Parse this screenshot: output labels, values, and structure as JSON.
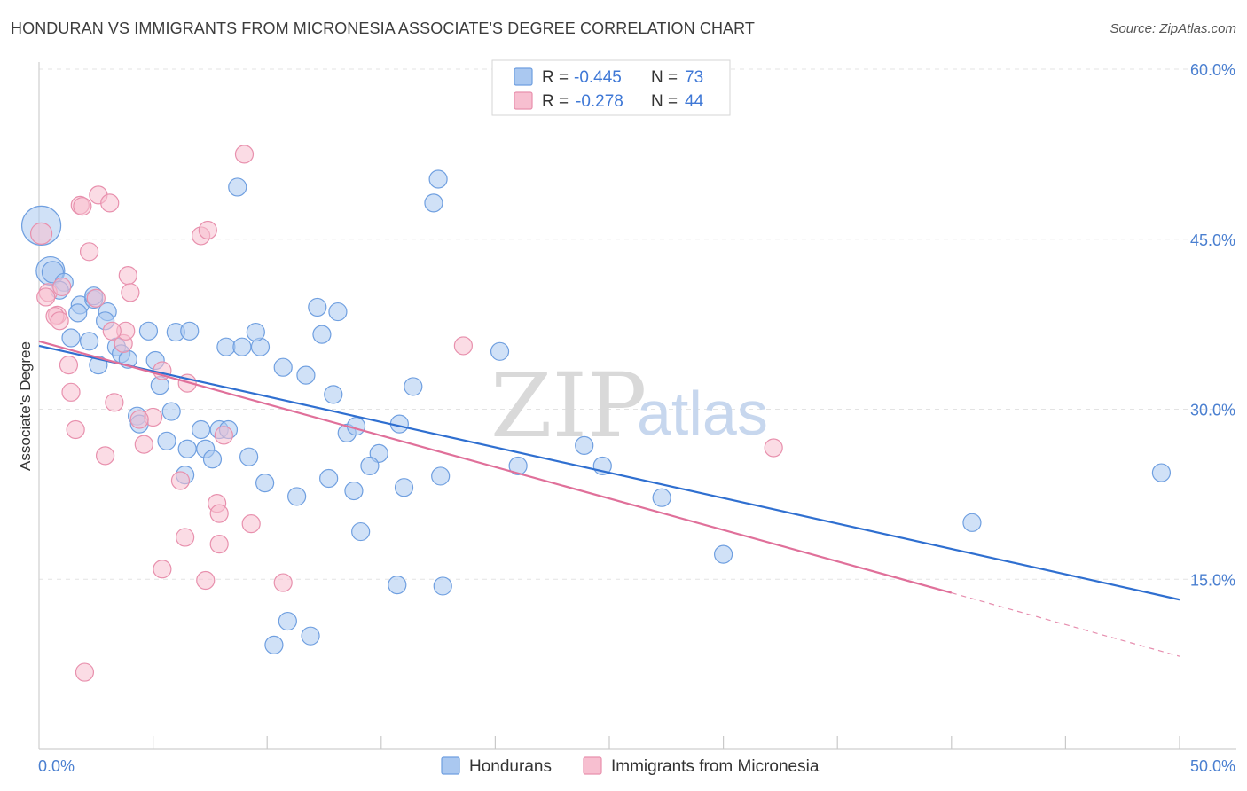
{
  "header": {
    "title": "HONDURAN VS IMMIGRANTS FROM MICRONESIA ASSOCIATE'S DEGREE CORRELATION CHART",
    "source": "Source: ZipAtlas.com"
  },
  "watermark": {
    "zip": "ZIP",
    "atlas": "atlas"
  },
  "legend": {
    "rows": [
      {
        "r_label": "R =",
        "r_value": "-0.445",
        "n_label": "N =",
        "n_value": "73",
        "color": "#aac8f0",
        "stroke": "#6f9fe0"
      },
      {
        "r_label": "R =",
        "r_value": "-0.278",
        "n_label": "N =",
        "n_value": "44",
        "color": "#f7bfd0",
        "stroke": "#e890ad"
      }
    ]
  },
  "bottom_legend": {
    "items": [
      {
        "label": "Hondurans",
        "color": "#aac8f0",
        "stroke": "#6f9fe0"
      },
      {
        "label": "Immigrants from Micronesia",
        "color": "#f7bfd0",
        "stroke": "#e890ad"
      }
    ]
  },
  "chart_data": {
    "type": "scatter",
    "title": "HONDURAN VS IMMIGRANTS FROM MICRONESIA ASSOCIATE'S DEGREE CORRELATION CHART",
    "xlabel": "",
    "ylabel": "Associate's Degree",
    "xlim": [
      0,
      50
    ],
    "ylim": [
      0,
      60
    ],
    "x_tick_labels": [
      {
        "value": 0,
        "label": "0.0%"
      },
      {
        "value": 50,
        "label": "50.0%"
      }
    ],
    "y_tick_labels": [
      {
        "value": 15,
        "label": "15.0%"
      },
      {
        "value": 30,
        "label": "30.0%"
      },
      {
        "value": 45,
        "label": "45.0%"
      },
      {
        "value": 60,
        "label": "60.0%"
      }
    ],
    "grid": true,
    "series": [
      {
        "name": "Hondurans",
        "color": "#aac8f0",
        "stroke": "#6f9fe0",
        "trend": {
          "x0": 0,
          "y0": 35.6,
          "x1": 50,
          "y1": 13.2,
          "color": "#2f6fd0"
        },
        "points": [
          [
            0.1,
            46.2,
            22
          ],
          [
            0.5,
            42.2,
            16
          ],
          [
            0.6,
            42.1,
            12
          ],
          [
            1.1,
            41.2,
            10
          ],
          [
            0.9,
            40.5,
            10
          ],
          [
            1.8,
            39.2,
            10
          ],
          [
            2.4,
            39.7,
            10
          ],
          [
            1.7,
            38.5,
            10
          ],
          [
            3.0,
            38.6,
            10
          ],
          [
            2.9,
            37.8,
            10
          ],
          [
            1.4,
            36.3,
            10
          ],
          [
            2.2,
            36.0,
            10
          ],
          [
            3.4,
            35.5,
            10
          ],
          [
            4.8,
            36.9,
            10
          ],
          [
            6.0,
            36.8,
            10
          ],
          [
            6.6,
            36.9,
            10
          ],
          [
            8.2,
            35.5,
            10
          ],
          [
            8.9,
            35.5,
            10
          ],
          [
            9.7,
            35.5,
            10
          ],
          [
            9.5,
            36.8,
            10
          ],
          [
            3.6,
            34.9,
            10
          ],
          [
            3.9,
            34.4,
            10
          ],
          [
            2.6,
            33.9,
            10
          ],
          [
            5.1,
            34.3,
            10
          ],
          [
            10.7,
            33.7,
            10
          ],
          [
            11.7,
            33.0,
            10
          ],
          [
            5.3,
            32.1,
            10
          ],
          [
            12.2,
            39.0,
            10
          ],
          [
            13.1,
            38.6,
            10
          ],
          [
            12.4,
            36.6,
            10
          ],
          [
            8.7,
            49.6,
            10
          ],
          [
            17.3,
            48.2,
            10
          ],
          [
            17.5,
            50.3,
            10
          ],
          [
            20.2,
            35.1,
            10
          ],
          [
            12.9,
            31.3,
            10
          ],
          [
            16.4,
            32.0,
            10
          ],
          [
            4.3,
            29.4,
            10
          ],
          [
            4.4,
            28.7,
            10
          ],
          [
            5.8,
            29.8,
            10
          ],
          [
            7.1,
            28.2,
            10
          ],
          [
            7.9,
            28.2,
            10
          ],
          [
            8.3,
            28.2,
            10
          ],
          [
            13.5,
            27.9,
            10
          ],
          [
            13.9,
            28.5,
            10
          ],
          [
            15.8,
            28.7,
            10
          ],
          [
            5.6,
            27.2,
            10
          ],
          [
            6.5,
            26.5,
            10
          ],
          [
            7.3,
            26.5,
            10
          ],
          [
            7.6,
            25.6,
            10
          ],
          [
            9.2,
            25.8,
            10
          ],
          [
            14.9,
            26.1,
            10
          ],
          [
            14.5,
            25.0,
            10
          ],
          [
            6.4,
            24.2,
            10
          ],
          [
            9.9,
            23.5,
            10
          ],
          [
            12.7,
            23.9,
            10
          ],
          [
            17.6,
            24.1,
            10
          ],
          [
            13.8,
            22.8,
            10
          ],
          [
            16.0,
            23.1,
            10
          ],
          [
            11.3,
            22.3,
            10
          ],
          [
            21.0,
            25.0,
            10
          ],
          [
            23.9,
            26.8,
            10
          ],
          [
            24.7,
            25.0,
            10
          ],
          [
            27.3,
            22.2,
            10
          ],
          [
            14.1,
            19.2,
            10
          ],
          [
            15.7,
            14.5,
            10
          ],
          [
            17.7,
            14.4,
            10
          ],
          [
            30.0,
            17.2,
            10
          ],
          [
            10.9,
            11.3,
            10
          ],
          [
            11.9,
            10.0,
            10
          ],
          [
            10.3,
            9.2,
            10
          ],
          [
            40.9,
            20.0,
            10
          ],
          [
            49.2,
            24.4,
            10
          ],
          [
            2.4,
            40.0,
            10
          ]
        ]
      },
      {
        "name": "Immigrants from Micronesia",
        "color": "#f7bfd0",
        "stroke": "#e890ad",
        "trend": {
          "x0": 0,
          "y0": 36.0,
          "x1": 40.0,
          "y1": 13.8,
          "color": "#e0709a",
          "dash_x0": 40.0,
          "dash_y0": 13.8,
          "dash_x1": 50,
          "dash_y1": 8.2
        },
        "points": [
          [
            0.1,
            45.5,
            12
          ],
          [
            0.4,
            40.3,
            10
          ],
          [
            0.3,
            39.9,
            10
          ],
          [
            0.8,
            38.3,
            10
          ],
          [
            0.7,
            38.2,
            10
          ],
          [
            0.9,
            37.8,
            10
          ],
          [
            1.0,
            40.8,
            10
          ],
          [
            1.8,
            48.0,
            10
          ],
          [
            2.6,
            48.9,
            10
          ],
          [
            3.1,
            48.2,
            10
          ],
          [
            2.2,
            43.9,
            10
          ],
          [
            3.9,
            41.8,
            10
          ],
          [
            4.0,
            40.3,
            10
          ],
          [
            2.5,
            39.8,
            10
          ],
          [
            3.7,
            35.8,
            10
          ],
          [
            3.8,
            36.9,
            10
          ],
          [
            1.3,
            33.9,
            10
          ],
          [
            1.4,
            31.5,
            10
          ],
          [
            3.3,
            30.6,
            10
          ],
          [
            5.0,
            29.3,
            10
          ],
          [
            4.4,
            29.1,
            10
          ],
          [
            5.4,
            33.4,
            10
          ],
          [
            6.5,
            32.3,
            10
          ],
          [
            1.6,
            28.2,
            10
          ],
          [
            2.9,
            25.9,
            10
          ],
          [
            4.6,
            26.9,
            10
          ],
          [
            8.1,
            27.7,
            10
          ],
          [
            6.2,
            23.7,
            10
          ],
          [
            7.1,
            45.3,
            10
          ],
          [
            7.4,
            45.8,
            10
          ],
          [
            9.0,
            52.5,
            10
          ],
          [
            18.6,
            35.6,
            10
          ],
          [
            32.2,
            26.6,
            10
          ],
          [
            7.8,
            21.7,
            10
          ],
          [
            7.9,
            20.8,
            10
          ],
          [
            9.3,
            19.9,
            10
          ],
          [
            6.4,
            18.7,
            10
          ],
          [
            7.9,
            18.1,
            10
          ],
          [
            5.4,
            15.9,
            10
          ],
          [
            7.3,
            14.9,
            10
          ],
          [
            10.7,
            14.7,
            10
          ],
          [
            2.0,
            6.8,
            10
          ],
          [
            1.9,
            47.9,
            10
          ],
          [
            3.2,
            36.9,
            10
          ]
        ]
      }
    ]
  }
}
